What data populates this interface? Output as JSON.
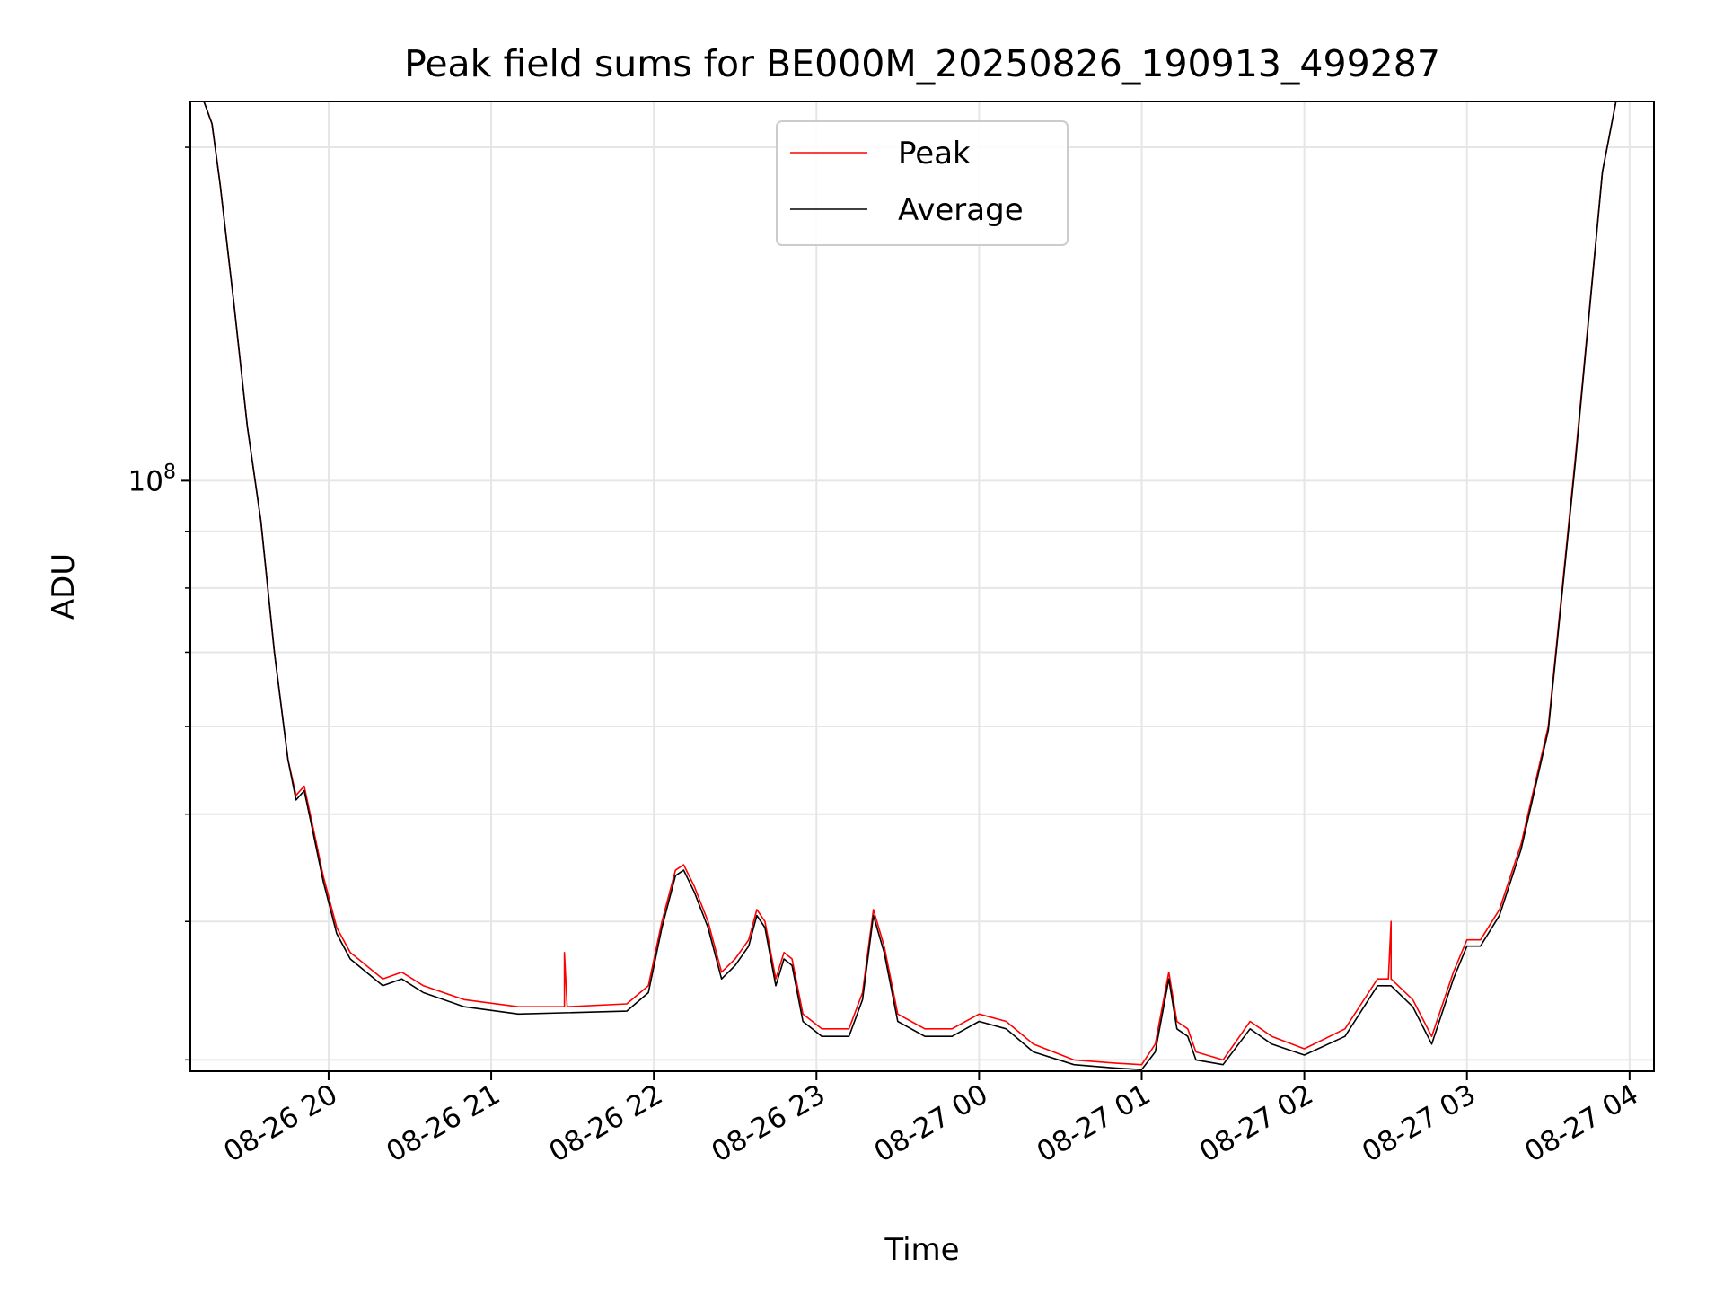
{
  "chart_data": {
    "type": "line",
    "title": "Peak field sums for BE000M_20250826_190913_499287",
    "xlabel": "Time",
    "ylabel": "ADU",
    "yscale": "log",
    "grid": true,
    "legend_placement": "upper-center",
    "x_range": [
      "2025-08-26 19:09",
      "2025-08-27 04:09"
    ],
    "ylim": [
      29300000.0,
      220000000.0
    ],
    "x_ticks": [
      {
        "time": "2025-08-26 20:00",
        "label": "08-26 20"
      },
      {
        "time": "2025-08-26 21:00",
        "label": "08-26 21"
      },
      {
        "time": "2025-08-26 22:00",
        "label": "08-26 22"
      },
      {
        "time": "2025-08-26 23:00",
        "label": "08-26 23"
      },
      {
        "time": "2025-08-27 00:00",
        "label": "08-27 00"
      },
      {
        "time": "2025-08-27 01:00",
        "label": "08-27 01"
      },
      {
        "time": "2025-08-27 02:00",
        "label": "08-27 02"
      },
      {
        "time": "2025-08-27 03:00",
        "label": "08-27 03"
      },
      {
        "time": "2025-08-27 04:00",
        "label": "08-27 04"
      }
    ],
    "y_ticks_major": [
      {
        "value": 100000000.0,
        "label_base": "10",
        "label_exp": "8"
      }
    ],
    "y_ticks_minor": [
      30000000.0,
      40000000.0,
      50000000.0,
      60000000.0,
      70000000.0,
      80000000.0,
      90000000.0,
      200000000.0
    ],
    "series": [
      {
        "name": "Peak",
        "color": "#ff0000",
        "points": [
          [
            "2025-08-26 19:09",
            220000000.0
          ],
          [
            "2025-08-26 19:14",
            220000000.0
          ],
          [
            "2025-08-26 19:17",
            210000000.0
          ],
          [
            "2025-08-26 19:20",
            185000000.0
          ],
          [
            "2025-08-26 19:25",
            145000000.0
          ],
          [
            "2025-08-26 19:30",
            112000000.0
          ],
          [
            "2025-08-26 19:35",
            92000000.0
          ],
          [
            "2025-08-26 19:40",
            70000000.0
          ],
          [
            "2025-08-26 19:45",
            56000000.0
          ],
          [
            "2025-08-26 19:48",
            52000000.0
          ],
          [
            "2025-08-26 19:51",
            53000000.0
          ],
          [
            "2025-08-26 19:54",
            49000000.0
          ],
          [
            "2025-08-26 19:58",
            44000000.0
          ],
          [
            "2025-08-26 20:03",
            39500000.0
          ],
          [
            "2025-08-26 20:08",
            37500000.0
          ],
          [
            "2025-08-26 20:20",
            35500000.0
          ],
          [
            "2025-08-26 20:27",
            36000000.0
          ],
          [
            "2025-08-26 20:35",
            35000000.0
          ],
          [
            "2025-08-26 20:50",
            34000000.0
          ],
          [
            "2025-08-26 21:10",
            33500000.0
          ],
          [
            "2025-08-26 21:27",
            33500000.0
          ],
          [
            "2025-08-26 21:27",
            37500000.0
          ],
          [
            "2025-08-26 21:28",
            33500000.0
          ],
          [
            "2025-08-26 21:50",
            33700000.0
          ],
          [
            "2025-08-26 21:58",
            35000000.0
          ],
          [
            "2025-08-26 22:03",
            40000000.0
          ],
          [
            "2025-08-26 22:08",
            44500000.0
          ],
          [
            "2025-08-26 22:11",
            45000000.0
          ],
          [
            "2025-08-26 22:15",
            43000000.0
          ],
          [
            "2025-08-26 22:20",
            40000000.0
          ],
          [
            "2025-08-26 22:25",
            36000000.0
          ],
          [
            "2025-08-26 22:30",
            37000000.0
          ],
          [
            "2025-08-26 22:35",
            38500000.0
          ],
          [
            "2025-08-26 22:38",
            41000000.0
          ],
          [
            "2025-08-26 22:41",
            40000000.0
          ],
          [
            "2025-08-26 22:45",
            35500000.0
          ],
          [
            "2025-08-26 22:48",
            37500000.0
          ],
          [
            "2025-08-26 22:51",
            37000000.0
          ],
          [
            "2025-08-26 22:55",
            33000000.0
          ],
          [
            "2025-08-26 23:02",
            32000000.0
          ],
          [
            "2025-08-26 23:12",
            32000000.0
          ],
          [
            "2025-08-26 23:17",
            34500000.0
          ],
          [
            "2025-08-26 23:21",
            41000000.0
          ],
          [
            "2025-08-26 23:25",
            38000000.0
          ],
          [
            "2025-08-26 23:30",
            33000000.0
          ],
          [
            "2025-08-26 23:40",
            32000000.0
          ],
          [
            "2025-08-26 23:50",
            32000000.0
          ],
          [
            "2025-08-27 00:00",
            33000000.0
          ],
          [
            "2025-08-27 00:10",
            32500000.0
          ],
          [
            "2025-08-27 00:20",
            31000000.0
          ],
          [
            "2025-08-27 00:35",
            30000000.0
          ],
          [
            "2025-08-27 00:50",
            29800000.0
          ],
          [
            "2025-08-27 01:00",
            29700000.0
          ],
          [
            "2025-08-27 01:05",
            31000000.0
          ],
          [
            "2025-08-27 01:10",
            36000000.0
          ],
          [
            "2025-08-27 01:13",
            32500000.0
          ],
          [
            "2025-08-27 01:17",
            32000000.0
          ],
          [
            "2025-08-27 01:20",
            30500000.0
          ],
          [
            "2025-08-27 01:30",
            30000000.0
          ],
          [
            "2025-08-27 01:40",
            32500000.0
          ],
          [
            "2025-08-27 01:48",
            31500000.0
          ],
          [
            "2025-08-27 02:00",
            30700000.0
          ],
          [
            "2025-08-27 02:15",
            32000000.0
          ],
          [
            "2025-08-27 02:27",
            35500000.0
          ],
          [
            "2025-08-27 02:31",
            35500000.0
          ],
          [
            "2025-08-27 02:32",
            40000000.0
          ],
          [
            "2025-08-27 02:32",
            35500000.0
          ],
          [
            "2025-08-27 02:40",
            34000000.0
          ],
          [
            "2025-08-27 02:47",
            31500000.0
          ],
          [
            "2025-08-27 02:55",
            36000000.0
          ],
          [
            "2025-08-27 03:00",
            38500000.0
          ],
          [
            "2025-08-27 03:05",
            38500000.0
          ],
          [
            "2025-08-27 03:12",
            41000000.0
          ],
          [
            "2025-08-27 03:20",
            47000000.0
          ],
          [
            "2025-08-27 03:30",
            60000000.0
          ],
          [
            "2025-08-27 03:40",
            105000000.0
          ],
          [
            "2025-08-27 03:50",
            190000000.0
          ],
          [
            "2025-08-27 03:55",
            220000000.0
          ],
          [
            "2025-08-27 04:09",
            220000000.0
          ]
        ]
      },
      {
        "name": "Average",
        "color": "#000000",
        "points": [
          [
            "2025-08-26 19:09",
            220000000.0
          ],
          [
            "2025-08-26 19:14",
            220000000.0
          ],
          [
            "2025-08-26 19:17",
            210000000.0
          ],
          [
            "2025-08-26 19:20",
            185000000.0
          ],
          [
            "2025-08-26 19:25",
            145000000.0
          ],
          [
            "2025-08-26 19:30",
            112000000.0
          ],
          [
            "2025-08-26 19:35",
            92000000.0
          ],
          [
            "2025-08-26 19:40",
            70000000.0
          ],
          [
            "2025-08-26 19:45",
            56000000.0
          ],
          [
            "2025-08-26 19:48",
            51500000.0
          ],
          [
            "2025-08-26 19:51",
            52500000.0
          ],
          [
            "2025-08-26 19:54",
            48500000.0
          ],
          [
            "2025-08-26 19:58",
            43500000.0
          ],
          [
            "2025-08-26 20:03",
            39000000.0
          ],
          [
            "2025-08-26 20:08",
            37000000.0
          ],
          [
            "2025-08-26 20:20",
            35000000.0
          ],
          [
            "2025-08-26 20:27",
            35500000.0
          ],
          [
            "2025-08-26 20:35",
            34500000.0
          ],
          [
            "2025-08-26 20:50",
            33500000.0
          ],
          [
            "2025-08-26 21:10",
            33000000.0
          ],
          [
            "2025-08-26 21:50",
            33200000.0
          ],
          [
            "2025-08-26 21:58",
            34500000.0
          ],
          [
            "2025-08-26 22:03",
            39500000.0
          ],
          [
            "2025-08-26 22:08",
            44000000.0
          ],
          [
            "2025-08-26 22:11",
            44500000.0
          ],
          [
            "2025-08-26 22:15",
            42500000.0
          ],
          [
            "2025-08-26 22:20",
            39500000.0
          ],
          [
            "2025-08-26 22:25",
            35500000.0
          ],
          [
            "2025-08-26 22:30",
            36500000.0
          ],
          [
            "2025-08-26 22:35",
            38000000.0
          ],
          [
            "2025-08-26 22:38",
            40500000.0
          ],
          [
            "2025-08-26 22:41",
            39500000.0
          ],
          [
            "2025-08-26 22:45",
            35000000.0
          ],
          [
            "2025-08-26 22:48",
            37000000.0
          ],
          [
            "2025-08-26 22:51",
            36500000.0
          ],
          [
            "2025-08-26 22:55",
            32500000.0
          ],
          [
            "2025-08-26 23:02",
            31500000.0
          ],
          [
            "2025-08-26 23:12",
            31500000.0
          ],
          [
            "2025-08-26 23:17",
            34000000.0
          ],
          [
            "2025-08-26 23:21",
            40500000.0
          ],
          [
            "2025-08-26 23:25",
            37500000.0
          ],
          [
            "2025-08-26 23:30",
            32500000.0
          ],
          [
            "2025-08-26 23:40",
            31500000.0
          ],
          [
            "2025-08-26 23:50",
            31500000.0
          ],
          [
            "2025-08-27 00:00",
            32500000.0
          ],
          [
            "2025-08-27 00:10",
            32000000.0
          ],
          [
            "2025-08-27 00:20",
            30500000.0
          ],
          [
            "2025-08-27 00:35",
            29700000.0
          ],
          [
            "2025-08-27 00:50",
            29500000.0
          ],
          [
            "2025-08-27 01:00",
            29400000.0
          ],
          [
            "2025-08-27 01:05",
            30500000.0
          ],
          [
            "2025-08-27 01:10",
            35500000.0
          ],
          [
            "2025-08-27 01:13",
            32000000.0
          ],
          [
            "2025-08-27 01:17",
            31500000.0
          ],
          [
            "2025-08-27 01:20",
            30000000.0
          ],
          [
            "2025-08-27 01:30",
            29700000.0
          ],
          [
            "2025-08-27 01:40",
            32000000.0
          ],
          [
            "2025-08-27 01:48",
            31000000.0
          ],
          [
            "2025-08-27 02:00",
            30300000.0
          ],
          [
            "2025-08-27 02:15",
            31500000.0
          ],
          [
            "2025-08-27 02:27",
            35000000.0
          ],
          [
            "2025-08-27 02:32",
            35000000.0
          ],
          [
            "2025-08-27 02:40",
            33500000.0
          ],
          [
            "2025-08-27 02:47",
            31000000.0
          ],
          [
            "2025-08-27 02:55",
            35500000.0
          ],
          [
            "2025-08-27 03:00",
            38000000.0
          ],
          [
            "2025-08-27 03:05",
            38000000.0
          ],
          [
            "2025-08-27 03:12",
            40500000.0
          ],
          [
            "2025-08-27 03:20",
            46500000.0
          ],
          [
            "2025-08-27 03:30",
            59500000.0
          ],
          [
            "2025-08-27 03:40",
            104000000.0
          ],
          [
            "2025-08-27 03:50",
            190000000.0
          ],
          [
            "2025-08-27 03:55",
            220000000.0
          ],
          [
            "2025-08-27 04:09",
            220000000.0
          ]
        ]
      }
    ]
  }
}
